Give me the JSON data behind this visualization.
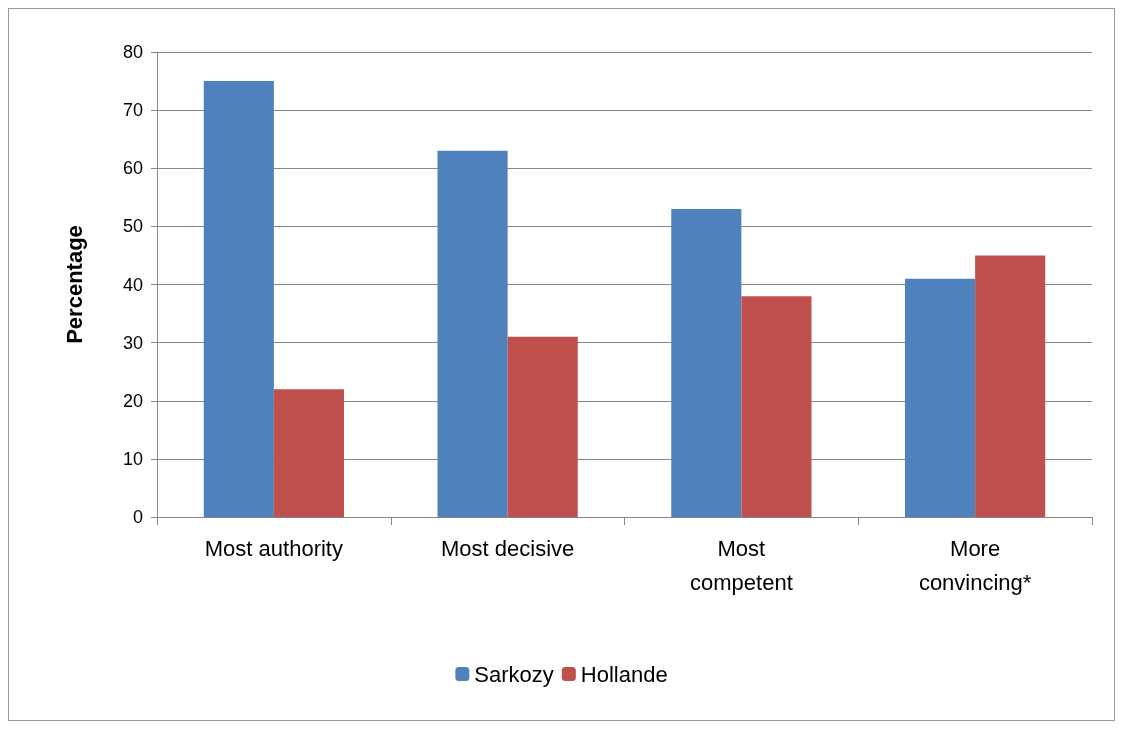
{
  "chart_data": {
    "type": "bar",
    "ylabel": "Percentage",
    "categories": [
      "Most authority",
      "Most decisive",
      "Most\ncompetent",
      "More\nconvincing*"
    ],
    "series": [
      {
        "name": "Sarkozy",
        "color": "#4f81bd",
        "values": [
          75,
          63,
          53,
          41
        ]
      },
      {
        "name": "Hollande",
        "color": "#c0504d",
        "values": [
          22,
          31,
          38,
          45
        ]
      }
    ],
    "ylim": [
      0,
      80
    ],
    "yticks": [
      0,
      10,
      20,
      30,
      40,
      50,
      60,
      70,
      80
    ],
    "grid": "y",
    "legend": "bottom"
  }
}
